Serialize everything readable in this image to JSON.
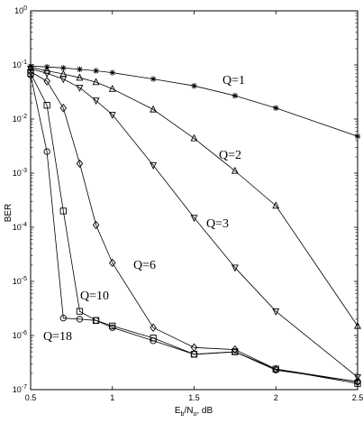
{
  "chart_data": {
    "type": "line",
    "title": "",
    "xlabel": "E_b/N_o, dB",
    "xlabel_parts": {
      "main": "E",
      "sub1": "b",
      "mid": "/N",
      "sub2": "o",
      "tail": ", dB"
    },
    "ylabel": "BER",
    "xscale": "linear",
    "yscale": "log",
    "xlim": [
      0.5,
      2.5
    ],
    "ylim": [
      1e-07,
      1
    ],
    "grid": false,
    "x_ticks": [
      {
        "value": 0.5,
        "label": "0.5"
      },
      {
        "value": 1,
        "label": "1"
      },
      {
        "value": 1.5,
        "label": "1.5"
      },
      {
        "value": 2,
        "label": "2"
      },
      {
        "value": 2.5,
        "label": "2.5"
      }
    ],
    "y_ticks": [
      {
        "exp": 0
      },
      {
        "exp": -1
      },
      {
        "exp": -2
      },
      {
        "exp": -3
      },
      {
        "exp": -4
      },
      {
        "exp": -5
      },
      {
        "exp": -6
      },
      {
        "exp": -7
      }
    ],
    "series": [
      {
        "name": "Q=1",
        "marker": "star",
        "x": [
          0.5,
          0.6,
          0.7,
          0.8,
          0.9,
          1.0,
          1.25,
          1.5,
          1.75,
          2.0,
          2.5
        ],
        "y": [
          0.095,
          0.092,
          0.088,
          0.083,
          0.078,
          0.072,
          0.055,
          0.041,
          0.027,
          0.016,
          0.0048
        ]
      },
      {
        "name": "Q=2",
        "marker": "triangle-up",
        "x": [
          0.5,
          0.6,
          0.7,
          0.8,
          0.9,
          1.0,
          1.25,
          1.5,
          1.75,
          2.0,
          2.5
        ],
        "y": [
          0.09,
          0.078,
          0.068,
          0.058,
          0.048,
          0.036,
          0.015,
          0.0044,
          0.0011,
          0.00025,
          1.5e-06
        ]
      },
      {
        "name": "Q=3",
        "marker": "triangle-down",
        "x": [
          0.5,
          0.6,
          0.7,
          0.8,
          0.9,
          1.0,
          1.25,
          1.5,
          1.75,
          2.0,
          2.5
        ],
        "y": [
          0.085,
          0.07,
          0.055,
          0.038,
          0.022,
          0.012,
          0.0014,
          0.00015,
          1.8e-05,
          2.8e-06,
          1.7e-07
        ]
      },
      {
        "name": "Q=6",
        "marker": "diamond",
        "x": [
          0.5,
          0.6,
          0.7,
          0.8,
          0.9,
          1.0,
          1.25,
          1.5,
          1.75,
          2.0,
          2.5
        ],
        "y": [
          0.075,
          0.05,
          0.016,
          0.0015,
          0.00011,
          2.2e-05,
          1.4e-06,
          6e-07,
          5.5e-07,
          2.4e-07,
          1.4e-07
        ]
      },
      {
        "name": "Q=10",
        "marker": "square",
        "x": [
          0.5,
          0.6,
          0.7,
          0.8,
          0.9,
          1.0,
          1.25,
          1.5,
          1.75,
          2.0,
          2.5
        ],
        "y": [
          0.07,
          0.018,
          0.0002,
          2.8e-06,
          1.9e-06,
          1.5e-06,
          9e-07,
          4.5e-07,
          5e-07,
          2.4e-07,
          1.3e-07
        ]
      },
      {
        "name": "Q=18",
        "marker": "circle",
        "x": [
          0.5,
          0.6,
          0.7,
          0.8,
          0.9,
          1.0,
          1.25,
          1.5,
          1.75,
          2.0,
          2.5
        ],
        "y": [
          0.065,
          0.0025,
          2.1e-06,
          2e-06,
          1.9e-06,
          1.4e-06,
          8e-07,
          4.5e-07,
          5e-07,
          2.3e-07,
          1.4e-07
        ]
      }
    ]
  }
}
